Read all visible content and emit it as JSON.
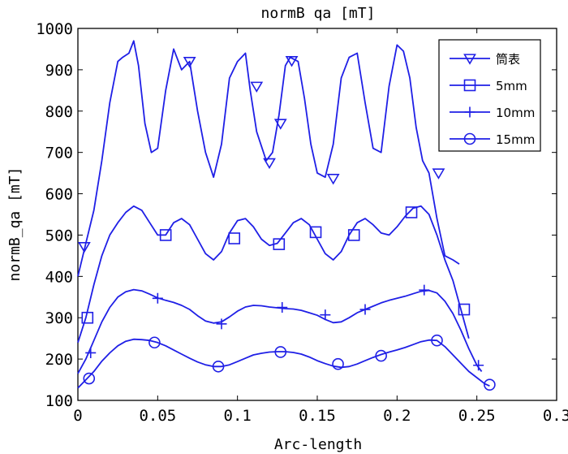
{
  "chart_data": {
    "type": "line",
    "title": "normB qa [mT]",
    "xlabel": "Arc-length",
    "ylabel": "normB_qa [mT]",
    "xlim": [
      0,
      0.3
    ],
    "ylim": [
      100,
      1000
    ],
    "xticks": [
      0,
      0.05,
      0.1,
      0.15,
      0.2,
      0.25,
      0.3
    ],
    "xtick_labels": [
      "0",
      "0.05",
      "0.1",
      "0.15",
      "0.2",
      "0.25",
      "0.3"
    ],
    "yticks": [
      100,
      200,
      300,
      400,
      500,
      600,
      700,
      800,
      900,
      1000
    ],
    "ytick_labels": [
      "100",
      "200",
      "300",
      "400",
      "500",
      "600",
      "700",
      "800",
      "900",
      "1000"
    ],
    "grid": false,
    "legend_position": "top-right",
    "line_color": "#1f1fe6",
    "series": [
      {
        "name": "筒表",
        "marker": "triangle-down",
        "x": [
          0,
          0.005,
          0.01,
          0.015,
          0.02,
          0.025,
          0.028,
          0.032,
          0.035,
          0.038,
          0.042,
          0.046,
          0.05,
          0.055,
          0.06,
          0.065,
          0.07,
          0.075,
          0.08,
          0.085,
          0.09,
          0.095,
          0.1,
          0.105,
          0.108,
          0.112,
          0.118,
          0.122,
          0.126,
          0.13,
          0.133,
          0.138,
          0.142,
          0.146,
          0.15,
          0.155,
          0.16,
          0.165,
          0.17,
          0.175,
          0.18,
          0.185,
          0.19,
          0.195,
          0.2,
          0.204,
          0.208,
          0.212,
          0.216,
          0.22,
          0.225,
          0.23,
          0.235,
          0.239
        ],
        "y": [
          400,
          480,
          560,
          680,
          820,
          920,
          930,
          940,
          970,
          910,
          770,
          700,
          710,
          850,
          950,
          900,
          920,
          800,
          700,
          640,
          720,
          880,
          920,
          940,
          850,
          750,
          680,
          700,
          790,
          910,
          930,
          920,
          830,
          720,
          650,
          640,
          720,
          880,
          930,
          940,
          820,
          710,
          700,
          860,
          960,
          945,
          880,
          760,
          680,
          650,
          540,
          450,
          440,
          430
        ],
        "marker_x": [
          0.004,
          0.07,
          0.112,
          0.12,
          0.127,
          0.134,
          0.16,
          0.226
        ],
        "marker_y": [
          472,
          920,
          860,
          675,
          770,
          922,
          637,
          650
        ]
      },
      {
        "name": "5mm",
        "marker": "square",
        "x": [
          0,
          0.005,
          0.01,
          0.015,
          0.02,
          0.025,
          0.03,
          0.035,
          0.04,
          0.045,
          0.05,
          0.055,
          0.06,
          0.065,
          0.07,
          0.075,
          0.08,
          0.085,
          0.09,
          0.095,
          0.1,
          0.105,
          0.11,
          0.115,
          0.12,
          0.125,
          0.13,
          0.135,
          0.14,
          0.145,
          0.15,
          0.155,
          0.16,
          0.165,
          0.17,
          0.175,
          0.18,
          0.185,
          0.19,
          0.195,
          0.2,
          0.205,
          0.21,
          0.215,
          0.22,
          0.225,
          0.23,
          0.235,
          0.24,
          0.245
        ],
        "y": [
          240,
          300,
          380,
          450,
          500,
          530,
          555,
          570,
          560,
          530,
          500,
          500,
          530,
          540,
          525,
          490,
          455,
          440,
          460,
          505,
          535,
          540,
          520,
          490,
          475,
          480,
          505,
          530,
          540,
          525,
          490,
          455,
          440,
          460,
          500,
          530,
          540,
          525,
          505,
          500,
          520,
          545,
          565,
          570,
          550,
          500,
          440,
          390,
          320,
          250
        ],
        "marker_x": [
          0.006,
          0.055,
          0.098,
          0.126,
          0.149,
          0.173,
          0.209,
          0.242
        ],
        "marker_y": [
          300,
          500,
          492,
          478,
          507,
          500,
          555,
          320
        ]
      },
      {
        "name": "10mm",
        "marker": "plus",
        "x": [
          0,
          0.005,
          0.01,
          0.015,
          0.02,
          0.025,
          0.03,
          0.035,
          0.04,
          0.045,
          0.05,
          0.055,
          0.06,
          0.065,
          0.07,
          0.075,
          0.08,
          0.085,
          0.09,
          0.095,
          0.1,
          0.105,
          0.11,
          0.115,
          0.12,
          0.125,
          0.13,
          0.135,
          0.14,
          0.145,
          0.15,
          0.155,
          0.16,
          0.165,
          0.17,
          0.175,
          0.18,
          0.185,
          0.19,
          0.195,
          0.2,
          0.205,
          0.21,
          0.215,
          0.22,
          0.225,
          0.23,
          0.235,
          0.24,
          0.245,
          0.25,
          0.253
        ],
        "y": [
          165,
          200,
          245,
          290,
          325,
          350,
          363,
          368,
          365,
          357,
          348,
          342,
          337,
          330,
          320,
          305,
          292,
          287,
          290,
          302,
          316,
          326,
          330,
          329,
          326,
          324,
          322,
          321,
          318,
          312,
          306,
          296,
          288,
          290,
          300,
          312,
          320,
          328,
          336,
          342,
          347,
          352,
          358,
          364,
          366,
          360,
          340,
          310,
          270,
          225,
          185,
          170
        ],
        "marker_x": [
          0.008,
          0.05,
          0.09,
          0.128,
          0.155,
          0.18,
          0.217,
          0.251
        ],
        "marker_y": [
          215,
          347,
          285,
          325,
          307,
          320,
          367,
          185
        ]
      },
      {
        "name": "15mm",
        "marker": "circle",
        "x": [
          0,
          0.005,
          0.01,
          0.015,
          0.02,
          0.025,
          0.03,
          0.035,
          0.04,
          0.045,
          0.05,
          0.055,
          0.06,
          0.065,
          0.07,
          0.075,
          0.08,
          0.085,
          0.09,
          0.095,
          0.1,
          0.105,
          0.11,
          0.115,
          0.12,
          0.125,
          0.13,
          0.135,
          0.14,
          0.145,
          0.15,
          0.155,
          0.16,
          0.165,
          0.17,
          0.175,
          0.18,
          0.185,
          0.19,
          0.195,
          0.2,
          0.205,
          0.21,
          0.215,
          0.22,
          0.225,
          0.23,
          0.235,
          0.24,
          0.245,
          0.25,
          0.255,
          0.258
        ],
        "y": [
          130,
          150,
          170,
          195,
          215,
          232,
          243,
          248,
          247,
          245,
          240,
          232,
          222,
          212,
          202,
          193,
          186,
          182,
          182,
          186,
          194,
          202,
          210,
          214,
          217,
          218,
          218,
          216,
          212,
          205,
          196,
          189,
          183,
          180,
          182,
          188,
          196,
          204,
          211,
          217,
          222,
          228,
          235,
          242,
          246,
          245,
          230,
          210,
          190,
          170,
          155,
          140,
          135
        ],
        "marker_x": [
          0.007,
          0.048,
          0.088,
          0.127,
          0.163,
          0.19,
          0.225,
          0.258
        ],
        "marker_y": [
          153,
          240,
          182,
          217,
          188,
          208,
          245,
          138
        ]
      }
    ]
  }
}
